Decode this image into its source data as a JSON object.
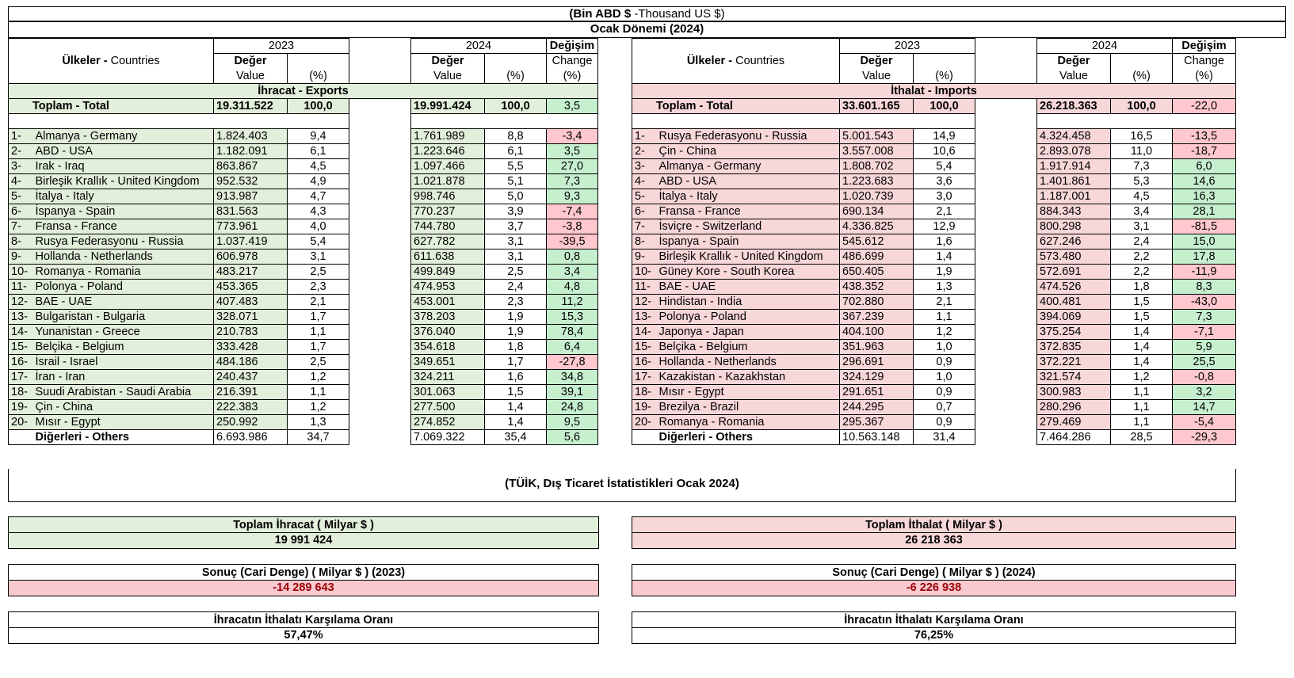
{
  "header": {
    "unit_bold": "(Bin ABD $",
    "unit_rest": " -Thousand US $)",
    "period": "Ocak Dönemi (2024)"
  },
  "labels": {
    "countries_tr": "Ülkeler -",
    "countries_en": " Countries",
    "year_2023": "2023",
    "year_2024": "2024",
    "deger": "Değer",
    "value": "Value",
    "pct": "(%)",
    "degisim": "Değişim",
    "change": "Change"
  },
  "exports": {
    "section": "İhracat - Exports",
    "total_label": "Toplam - Total",
    "total": {
      "v2023": "19.311.522",
      "p2023": "100,0",
      "v2024": "19.991.424",
      "p2024": "100,0",
      "chg": "3,5"
    },
    "rows": [
      {
        "rank": "1-",
        "country": "Almanya - Germany",
        "v2023": "1.824.403",
        "p2023": "9,4",
        "v2024": "1.761.989",
        "p2024": "8,8",
        "chg": "-3,4"
      },
      {
        "rank": "2-",
        "country": "ABD - USA",
        "v2023": "1.182.091",
        "p2023": "6,1",
        "v2024": "1.223.646",
        "p2024": "6,1",
        "chg": "3,5"
      },
      {
        "rank": "3-",
        "country": "Irak - Iraq",
        "v2023": "863.867",
        "p2023": "4,5",
        "v2024": "1.097.466",
        "p2024": "5,5",
        "chg": "27,0"
      },
      {
        "rank": "4-",
        "country": "Birleşik Krallık - United Kingdom",
        "v2023": "952.532",
        "p2023": "4,9",
        "v2024": "1.021.878",
        "p2024": "5,1",
        "chg": "7,3"
      },
      {
        "rank": "5-",
        "country": "İtalya - Italy",
        "v2023": "913.987",
        "p2023": "4,7",
        "v2024": "998.746",
        "p2024": "5,0",
        "chg": "9,3"
      },
      {
        "rank": "6-",
        "country": "İspanya - Spain",
        "v2023": "831.563",
        "p2023": "4,3",
        "v2024": "770.237",
        "p2024": "3,9",
        "chg": "-7,4"
      },
      {
        "rank": "7-",
        "country": "Fransa - France",
        "v2023": "773.961",
        "p2023": "4,0",
        "v2024": "744.780",
        "p2024": "3,7",
        "chg": "-3,8"
      },
      {
        "rank": "8-",
        "country": "Rusya Federasyonu - Russia",
        "v2023": "1.037.419",
        "p2023": "5,4",
        "v2024": "627.782",
        "p2024": "3,1",
        "chg": "-39,5"
      },
      {
        "rank": "9-",
        "country": "Hollanda - Netherlands",
        "v2023": "606.978",
        "p2023": "3,1",
        "v2024": "611.638",
        "p2024": "3,1",
        "chg": "0,8"
      },
      {
        "rank": "10-",
        "country": "Romanya - Romania",
        "v2023": "483.217",
        "p2023": "2,5",
        "v2024": "499.849",
        "p2024": "2,5",
        "chg": "3,4"
      },
      {
        "rank": "11-",
        "country": "Polonya - Poland",
        "v2023": "453.365",
        "p2023": "2,3",
        "v2024": "474.953",
        "p2024": "2,4",
        "chg": "4,8"
      },
      {
        "rank": "12-",
        "country": "BAE - UAE",
        "v2023": "407.483",
        "p2023": "2,1",
        "v2024": "453.001",
        "p2024": "2,3",
        "chg": "11,2"
      },
      {
        "rank": "13-",
        "country": "Bulgaristan - Bulgaria",
        "v2023": "328.071",
        "p2023": "1,7",
        "v2024": "378.203",
        "p2024": "1,9",
        "chg": "15,3"
      },
      {
        "rank": "14-",
        "country": "Yunanistan - Greece",
        "v2023": "210.783",
        "p2023": "1,1",
        "v2024": "376.040",
        "p2024": "1,9",
        "chg": "78,4"
      },
      {
        "rank": "15-",
        "country": "Belçika - Belgium",
        "v2023": "333.428",
        "p2023": "1,7",
        "v2024": "354.618",
        "p2024": "1,8",
        "chg": "6,4"
      },
      {
        "rank": "16-",
        "country": "İsrail - Israel",
        "v2023": "484.186",
        "p2023": "2,5",
        "v2024": "349.651",
        "p2024": "1,7",
        "chg": "-27,8"
      },
      {
        "rank": "17-",
        "country": "İran - Iran",
        "v2023": "240.437",
        "p2023": "1,2",
        "v2024": "324.211",
        "p2024": "1,6",
        "chg": "34,8"
      },
      {
        "rank": "18-",
        "country": "Suudi Arabistan - Saudi Arabia",
        "v2023": "216.391",
        "p2023": "1,1",
        "v2024": "301.063",
        "p2024": "1,5",
        "chg": "39,1"
      },
      {
        "rank": "19-",
        "country": "Çin - China",
        "v2023": "222.383",
        "p2023": "1,2",
        "v2024": "277.500",
        "p2024": "1,4",
        "chg": "24,8"
      },
      {
        "rank": "20-",
        "country": "Mısır - Egypt",
        "v2023": "250.992",
        "p2023": "1,3",
        "v2024": "274.852",
        "p2024": "1,4",
        "chg": "9,5"
      }
    ],
    "others_label": "Diğerleri - Others",
    "others": {
      "v2023": "6.693.986",
      "p2023": "34,7",
      "v2024": "7.069.322",
      "p2024": "35,4",
      "chg": "5,6"
    }
  },
  "imports": {
    "section": "İthalat - Imports",
    "total_label": "Toplam - Total",
    "total": {
      "v2023": "33.601.165",
      "p2023": "100,0",
      "v2024": "26.218.363",
      "p2024": "100,0",
      "chg": "-22,0"
    },
    "rows": [
      {
        "rank": "1-",
        "country": "Rusya Federasyonu - Russia",
        "v2023": "5.001.543",
        "p2023": "14,9",
        "v2024": "4.324.458",
        "p2024": "16,5",
        "chg": "-13,5"
      },
      {
        "rank": "2-",
        "country": "Çin - China",
        "v2023": "3.557.008",
        "p2023": "10,6",
        "v2024": "2.893.078",
        "p2024": "11,0",
        "chg": "-18,7"
      },
      {
        "rank": "3-",
        "country": "Almanya - Germany",
        "v2023": "1.808.702",
        "p2023": "5,4",
        "v2024": "1.917.914",
        "p2024": "7,3",
        "chg": "6,0"
      },
      {
        "rank": "4-",
        "country": "ABD - USA",
        "v2023": "1.223.683",
        "p2023": "3,6",
        "v2024": "1.401.861",
        "p2024": "5,3",
        "chg": "14,6"
      },
      {
        "rank": "5-",
        "country": "İtalya - Italy",
        "v2023": "1.020.739",
        "p2023": "3,0",
        "v2024": "1.187.001",
        "p2024": "4,5",
        "chg": "16,3"
      },
      {
        "rank": "6-",
        "country": "Fransa - France",
        "v2023": "690.134",
        "p2023": "2,1",
        "v2024": "884.343",
        "p2024": "3,4",
        "chg": "28,1"
      },
      {
        "rank": "7-",
        "country": "İsviçre - Switzerland",
        "v2023": "4.336.825",
        "p2023": "12,9",
        "v2024": "800.298",
        "p2024": "3,1",
        "chg": "-81,5"
      },
      {
        "rank": "8-",
        "country": "İspanya - Spain",
        "v2023": "545.612",
        "p2023": "1,6",
        "v2024": "627.246",
        "p2024": "2,4",
        "chg": "15,0"
      },
      {
        "rank": "9-",
        "country": "Birleşik Krallık - United Kingdom",
        "v2023": "486.699",
        "p2023": "1,4",
        "v2024": "573.480",
        "p2024": "2,2",
        "chg": "17,8"
      },
      {
        "rank": "10-",
        "country": "Güney Kore - South Korea",
        "v2023": "650.405",
        "p2023": "1,9",
        "v2024": "572.691",
        "p2024": "2,2",
        "chg": "-11,9"
      },
      {
        "rank": "11-",
        "country": "BAE - UAE",
        "v2023": "438.352",
        "p2023": "1,3",
        "v2024": "474.526",
        "p2024": "1,8",
        "chg": "8,3"
      },
      {
        "rank": "12-",
        "country": "Hindistan - India",
        "v2023": "702.880",
        "p2023": "2,1",
        "v2024": "400.481",
        "p2024": "1,5",
        "chg": "-43,0"
      },
      {
        "rank": "13-",
        "country": "Polonya - Poland",
        "v2023": "367.239",
        "p2023": "1,1",
        "v2024": "394.069",
        "p2024": "1,5",
        "chg": "7,3"
      },
      {
        "rank": "14-",
        "country": "Japonya - Japan",
        "v2023": "404.100",
        "p2023": "1,2",
        "v2024": "375.254",
        "p2024": "1,4",
        "chg": "-7,1"
      },
      {
        "rank": "15-",
        "country": "Belçika - Belgium",
        "v2023": "351.963",
        "p2023": "1,0",
        "v2024": "372.835",
        "p2024": "1,4",
        "chg": "5,9"
      },
      {
        "rank": "16-",
        "country": "Hollanda - Netherlands",
        "v2023": "296.691",
        "p2023": "0,9",
        "v2024": "372.221",
        "p2024": "1,4",
        "chg": "25,5"
      },
      {
        "rank": "17-",
        "country": "Kazakistan - Kazakhstan",
        "v2023": "324.129",
        "p2023": "1,0",
        "v2024": "321.574",
        "p2024": "1,2",
        "chg": "-0,8"
      },
      {
        "rank": "18-",
        "country": "Mısır - Egypt",
        "v2023": "291.651",
        "p2023": "0,9",
        "v2024": "300.983",
        "p2024": "1,1",
        "chg": "3,2"
      },
      {
        "rank": "19-",
        "country": "Brezilya - Brazil",
        "v2023": "244.295",
        "p2023": "0,7",
        "v2024": "280.296",
        "p2024": "1,1",
        "chg": "14,7"
      },
      {
        "rank": "20-",
        "country": "Romanya - Romania",
        "v2023": "295.367",
        "p2023": "0,9",
        "v2024": "279.469",
        "p2024": "1,1",
        "chg": "-5,4"
      }
    ],
    "others_label": "Diğerleri - Others",
    "others": {
      "v2023": "10.563.148",
      "p2023": "31,4",
      "v2024": "7.464.286",
      "p2024": "28,5",
      "chg": "-29,3"
    }
  },
  "source": "(TÜİK, Dış Ticaret İstatistikleri Ocak 2024)",
  "summary": {
    "total_exports_title": "Toplam İhracat ( Milyar $ )",
    "total_exports_value": "19 991 424",
    "total_imports_title": "Toplam İthalat ( Milyar $ )",
    "total_imports_value": "26 218 363",
    "balance_2023_title": "Sonuç (Cari Denge) ( Milyar $ ) (2023)",
    "balance_2023_value": "-14 289 643",
    "balance_2024_title": "Sonuç (Cari Denge) ( Milyar $ ) (2024)",
    "balance_2024_value": "-6 226 938",
    "coverage_title_left": "İhracatın İthalatı Karşılama Oranı",
    "coverage_value_left": "57,47%",
    "coverage_title_right": "İhracatın İthalatı Karşılama Oranı",
    "coverage_value_right": "76,25%"
  },
  "colors": {
    "positive_fill": "#c6efce",
    "negative_fill": "#ffc7ce",
    "exports_band": "#e2efda",
    "imports_band": "#f8d7d9"
  }
}
